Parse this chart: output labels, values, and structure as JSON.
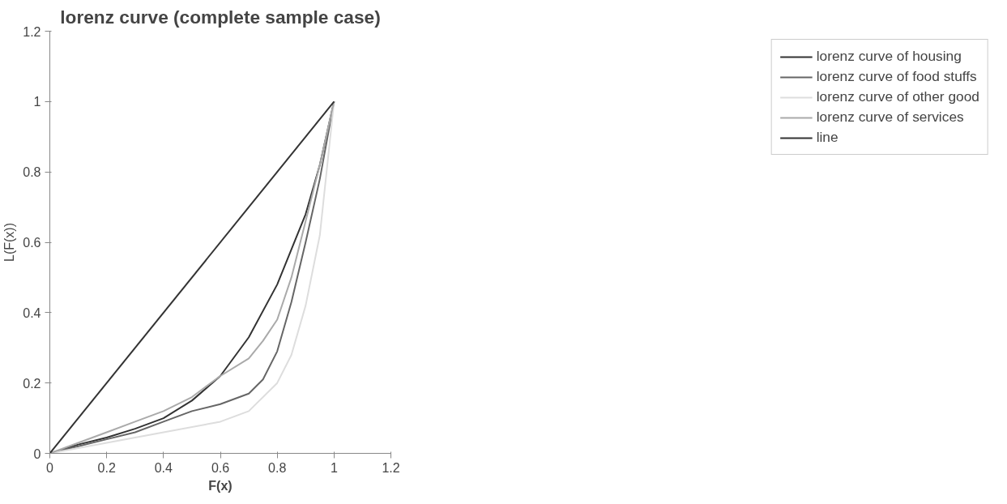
{
  "chart_data": {
    "type": "line",
    "title": "lorenz curve (complete sample case)",
    "xlabel": "F(x)",
    "ylabel": "L(F(x))",
    "xlim": [
      0,
      1.2
    ],
    "ylim": [
      0,
      1.2
    ],
    "xticks": [
      0,
      0.2,
      0.4,
      0.6,
      0.8,
      1,
      1.2
    ],
    "yticks": [
      0,
      0.2,
      0.4,
      0.6,
      0.8,
      1,
      1.2
    ],
    "grid": false,
    "legend": "right",
    "line_style": "solid",
    "marker": "none",
    "series": [
      {
        "name": "lorenz curve of housing",
        "color": "#333333",
        "x": [
          0,
          0.1,
          0.2,
          0.3,
          0.4,
          0.5,
          0.6,
          0.7,
          0.8,
          0.9,
          0.95,
          1
        ],
        "values": [
          0,
          0.025,
          0.045,
          0.07,
          0.1,
          0.15,
          0.22,
          0.33,
          0.48,
          0.68,
          0.82,
          1
        ]
      },
      {
        "name": "lorenz curve of food stuffs",
        "color": "#666666",
        "x": [
          0,
          0.1,
          0.2,
          0.3,
          0.4,
          0.5,
          0.6,
          0.7,
          0.75,
          0.8,
          0.85,
          0.9,
          0.95,
          1
        ],
        "values": [
          0,
          0.02,
          0.04,
          0.06,
          0.09,
          0.12,
          0.14,
          0.17,
          0.21,
          0.29,
          0.43,
          0.6,
          0.78,
          1
        ]
      },
      {
        "name": "lorenz curve of other good",
        "color": "#dddddd",
        "x": [
          0,
          0.2,
          0.4,
          0.6,
          0.7,
          0.8,
          0.85,
          0.9,
          0.95,
          1
        ],
        "values": [
          0,
          0.03,
          0.06,
          0.09,
          0.12,
          0.2,
          0.28,
          0.42,
          0.62,
          1
        ]
      },
      {
        "name": "lorenz curve of services",
        "color": "#aaaaaa",
        "x": [
          0,
          0.1,
          0.2,
          0.3,
          0.4,
          0.5,
          0.6,
          0.7,
          0.75,
          0.8,
          0.85,
          0.9,
          0.95,
          1
        ],
        "values": [
          0,
          0.03,
          0.06,
          0.09,
          0.12,
          0.16,
          0.22,
          0.27,
          0.32,
          0.38,
          0.5,
          0.66,
          0.82,
          1
        ]
      },
      {
        "name": "line",
        "color": "#333333",
        "x": [
          0,
          1
        ],
        "values": [
          0,
          1
        ]
      }
    ]
  }
}
